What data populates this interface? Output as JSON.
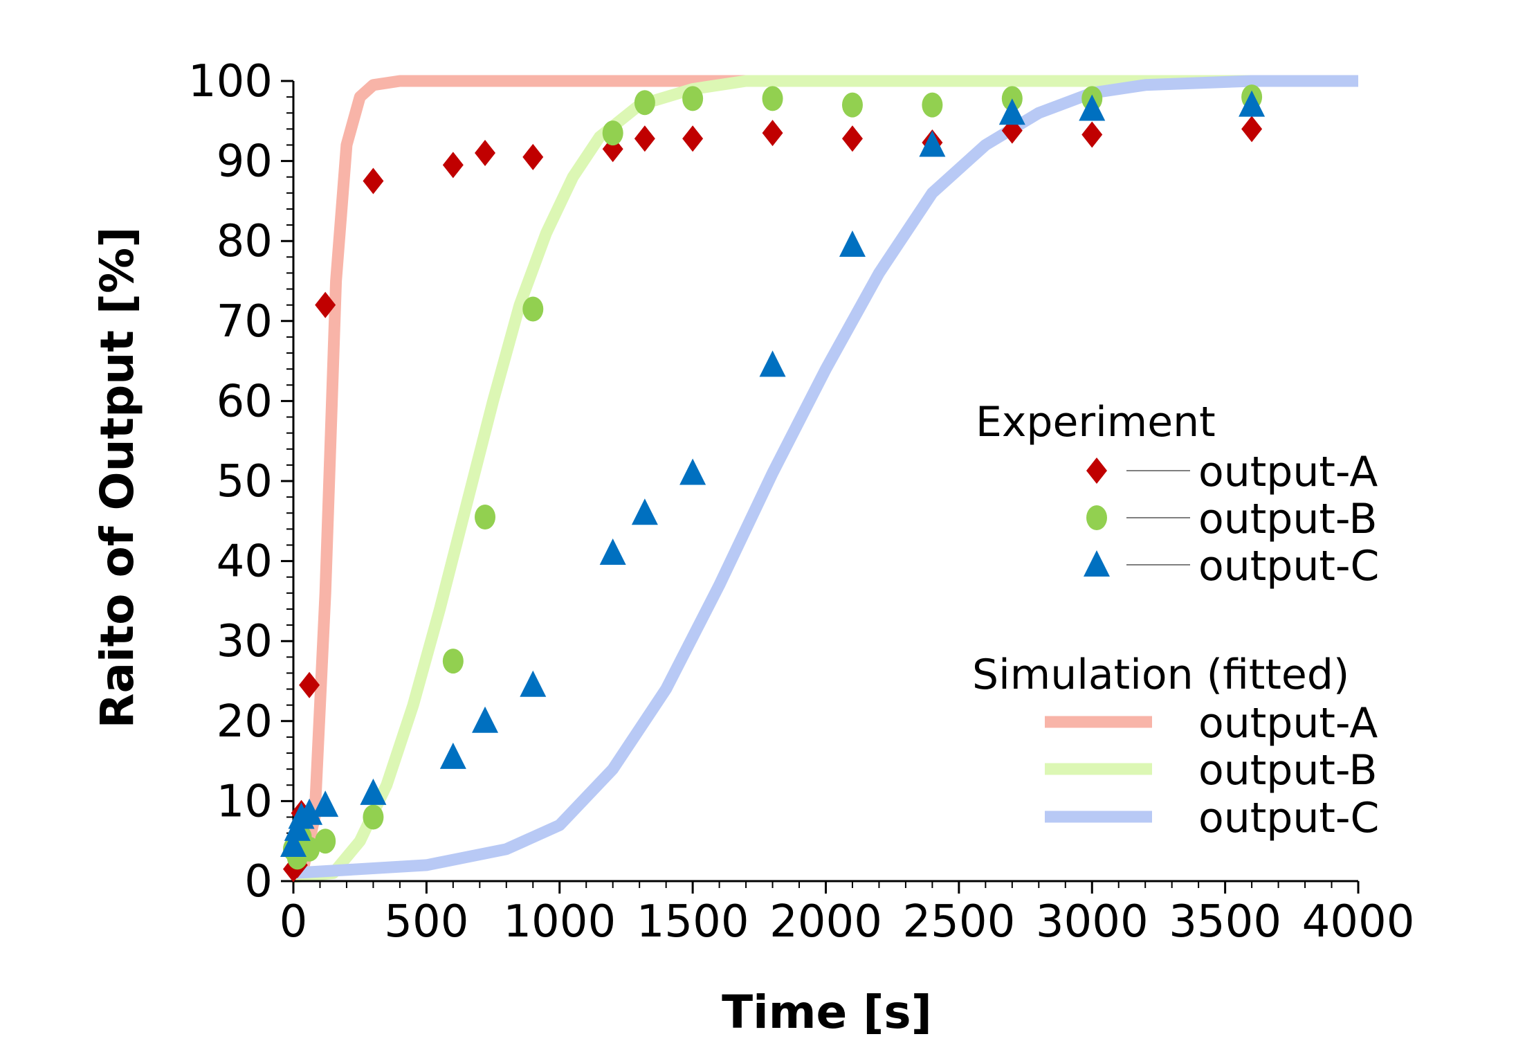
{
  "chart_data": {
    "type": "scatter",
    "xlabel": "Time [s]",
    "ylabel": "Raito of Output [%]",
    "xlim": [
      0,
      4000
    ],
    "ylim": [
      0,
      100
    ],
    "x_ticks": [
      0,
      500,
      1000,
      1500,
      2000,
      2500,
      3000,
      3500,
      4000
    ],
    "y_ticks": [
      0,
      10,
      20,
      30,
      40,
      50,
      60,
      70,
      80,
      90,
      100
    ],
    "x_tick_labels": [
      "0",
      "500",
      "1000",
      "1500",
      "2000",
      "2500",
      "3000",
      "3500",
      "4000"
    ],
    "y_tick_labels": [
      "0",
      "10",
      "20",
      "30",
      "40",
      "50",
      "60",
      "70",
      "80",
      "90",
      "100"
    ],
    "grid": false,
    "legend_placement": "right",
    "legend": {
      "experiment_heading": "Experiment",
      "simulation_heading": "Simulation (fitted)"
    },
    "experiment_series": [
      {
        "name": "output-A",
        "marker": "diamond",
        "color": "#c00000",
        "x": [
          0,
          15,
          30,
          60,
          120,
          300,
          600,
          720,
          900,
          1200,
          1320,
          1500,
          1800,
          2100,
          2400,
          2700,
          3000,
          3600
        ],
        "y": [
          1.5,
          2,
          8.5,
          24.5,
          72,
          87.5,
          89.5,
          91,
          90.5,
          91.5,
          92.8,
          92.8,
          93.5,
          92.8,
          92.3,
          93.8,
          93.3,
          94
        ]
      },
      {
        "name": "output-B",
        "marker": "circle",
        "color": "#92d050",
        "x": [
          0,
          15,
          30,
          60,
          120,
          300,
          600,
          720,
          900,
          1200,
          1320,
          1500,
          1800,
          2100,
          2400,
          2700,
          3000,
          3600
        ],
        "y": [
          4,
          3,
          5.5,
          4,
          5,
          8,
          27.5,
          45.5,
          71.5,
          93.5,
          97.3,
          97.8,
          97.8,
          97,
          97,
          97.8,
          97.8,
          98
        ]
      },
      {
        "name": "output-C",
        "marker": "triangle",
        "color": "#0070c0",
        "x": [
          0,
          15,
          30,
          60,
          120,
          300,
          600,
          720,
          900,
          1200,
          1320,
          1500,
          1800,
          2100,
          2400,
          2700,
          3000,
          3600
        ],
        "y": [
          4.5,
          6.5,
          8,
          8.5,
          9.5,
          11,
          15.5,
          20,
          24.5,
          41,
          46,
          51,
          64.5,
          79.5,
          92,
          96,
          96.5,
          97
        ]
      }
    ],
    "simulation_series": [
      {
        "name": "output-A",
        "color": "#f8b4a8",
        "x": [
          0,
          40,
          80,
          120,
          160,
          200,
          250,
          300,
          400,
          500,
          4000
        ],
        "y": [
          1,
          2,
          8,
          36,
          75,
          92,
          98,
          99.5,
          100,
          100,
          100
        ]
      },
      {
        "name": "output-B",
        "color": "#dcf7b4",
        "x": [
          0,
          150,
          250,
          350,
          450,
          550,
          650,
          750,
          850,
          950,
          1050,
          1150,
          1300,
          1500,
          1700,
          4000
        ],
        "y": [
          0.5,
          1,
          5,
          12,
          22,
          34,
          47,
          60,
          72,
          81,
          88,
          93,
          97,
          99,
          100,
          100
        ]
      },
      {
        "name": "output-C",
        "color": "#b8c9f5",
        "x": [
          0,
          500,
          800,
          1000,
          1200,
          1400,
          1600,
          1800,
          2000,
          2200,
          2400,
          2600,
          2800,
          3000,
          3200,
          3600,
          4000
        ],
        "y": [
          1,
          2,
          4,
          7,
          14,
          24,
          37,
          51,
          64,
          76,
          86,
          92,
          96,
          98.5,
          99.5,
          100,
          100
        ]
      }
    ]
  }
}
